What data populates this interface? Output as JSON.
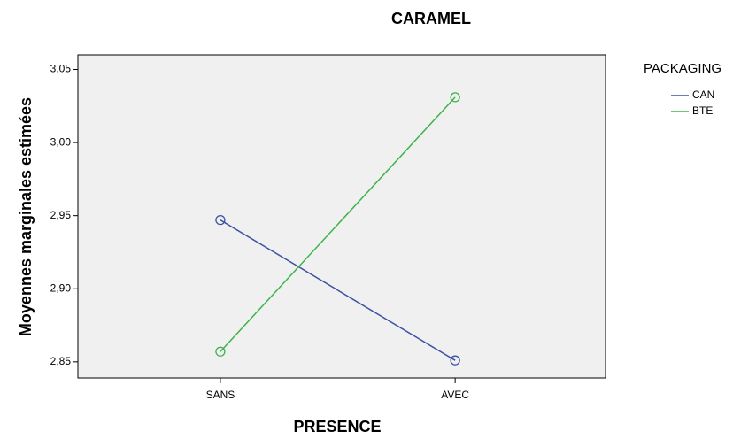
{
  "chart_data": {
    "type": "line",
    "title": "CARAMEL",
    "x_label": "PRESENCE",
    "y_label": "Moyennes marginales estimées",
    "categories": [
      "SANS",
      "AVEC"
    ],
    "legend_title": "PACKAGING",
    "legend": "right",
    "series": [
      {
        "name": "CAN",
        "color": "#3a53a4",
        "values": [
          2.947,
          2.851
        ]
      },
      {
        "name": "BTE",
        "color": "#3cb44a",
        "values": [
          2.857,
          3.031
        ]
      }
    ],
    "ylim": [
      2.839,
      3.06
    ],
    "yticks": [
      {
        "value": 2.85,
        "label": "2,85"
      },
      {
        "value": 2.9,
        "label": "2,90"
      },
      {
        "value": 2.95,
        "label": "2,95"
      },
      {
        "value": 3.0,
        "label": "3,00"
      },
      {
        "value": 3.05,
        "label": "3,05"
      }
    ],
    "grid": false
  }
}
